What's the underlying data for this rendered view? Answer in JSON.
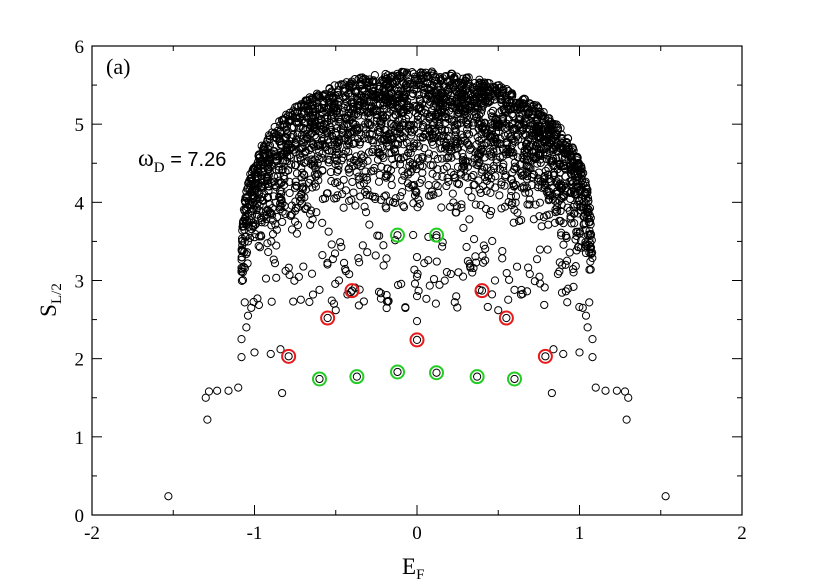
{
  "chart_data": {
    "type": "scatter",
    "panel_label": "(a)",
    "annotation": {
      "symbol": "ω",
      "subscript": "D",
      "text": " = 7.26"
    },
    "xlabel": {
      "main": "E",
      "sub": "F"
    },
    "ylabel": {
      "main": "S",
      "sub": "L/2"
    },
    "xlim": [
      -2,
      2
    ],
    "ylim": [
      0,
      6
    ],
    "xticks": [
      -2,
      -1,
      0,
      1,
      2
    ],
    "yticks": [
      0,
      1,
      2,
      3,
      4,
      5,
      6
    ],
    "grid": false,
    "colors": {
      "points": "#000000",
      "highlight_red": "#e8191a",
      "highlight_green": "#22cc22"
    },
    "series": [
      {
        "marker": "open-circle",
        "points": [
          [
            -1.53,
            0.24
          ],
          [
            1.53,
            0.24
          ],
          [
            -1.29,
            1.22
          ],
          [
            1.29,
            1.22
          ],
          [
            -1.3,
            1.5
          ],
          [
            -1.28,
            1.58
          ],
          [
            -1.23,
            1.59
          ],
          [
            -1.16,
            1.59
          ],
          [
            -1.1,
            1.63
          ],
          [
            1.3,
            1.5
          ],
          [
            1.28,
            1.58
          ],
          [
            1.23,
            1.59
          ],
          [
            1.16,
            1.59
          ],
          [
            1.1,
            1.63
          ],
          [
            -0.83,
            1.56
          ],
          [
            0.83,
            1.56
          ],
          [
            -1.08,
            2.02
          ],
          [
            -1.0,
            2.08
          ],
          [
            -0.9,
            2.06
          ],
          [
            -0.84,
            2.12
          ],
          [
            1.08,
            2.02
          ],
          [
            1.0,
            2.08
          ],
          [
            0.9,
            2.06
          ],
          [
            0.84,
            2.12
          ],
          [
            -1.08,
            2.25
          ],
          [
            -1.05,
            2.4
          ],
          [
            -1.04,
            2.55
          ],
          [
            -1.02,
            2.65
          ],
          [
            -1.06,
            2.72
          ],
          [
            1.08,
            2.25
          ],
          [
            1.05,
            2.4
          ],
          [
            1.04,
            2.55
          ],
          [
            1.02,
            2.65
          ],
          [
            1.06,
            2.72
          ],
          [
            -0.5,
            2.62
          ],
          [
            -0.6,
            2.88
          ],
          [
            -0.48,
            3.0
          ],
          [
            -0.64,
            2.82
          ],
          [
            0.5,
            2.62
          ],
          [
            0.6,
            2.88
          ],
          [
            0.48,
            3.0
          ],
          [
            0.64,
            2.82
          ],
          [
            0.0,
            2.48
          ],
          [
            0.0,
            2.8
          ],
          [
            0.0,
            3.05
          ],
          [
            0.0,
            3.3
          ]
        ]
      },
      {
        "marker": "highlight-red",
        "points": [
          [
            -0.79,
            2.03
          ],
          [
            0.79,
            2.03
          ],
          [
            -0.55,
            2.52
          ],
          [
            0.55,
            2.52
          ],
          [
            -0.4,
            2.87
          ],
          [
            0.4,
            2.87
          ],
          [
            0.0,
            2.24
          ]
        ]
      },
      {
        "marker": "highlight-green",
        "points": [
          [
            -0.6,
            1.74
          ],
          [
            0.6,
            1.74
          ],
          [
            -0.37,
            1.77
          ],
          [
            0.37,
            1.77
          ],
          [
            -0.12,
            1.83
          ],
          [
            0.12,
            1.82
          ],
          [
            -0.12,
            3.58
          ],
          [
            0.12,
            3.58
          ]
        ]
      }
    ],
    "dense_region": {
      "half_width": 1.08,
      "peak": 5.68,
      "base": 3.7,
      "edge_y": 2.9
    }
  }
}
